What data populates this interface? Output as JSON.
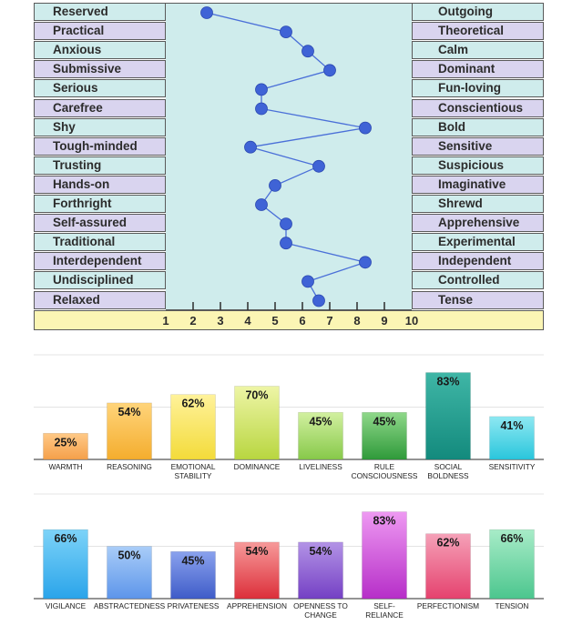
{
  "chart_data": [
    {
      "type": "line",
      "x_range": [
        1,
        10
      ],
      "x_ticks": [
        1,
        2,
        3,
        4,
        5,
        6,
        7,
        8,
        9,
        10
      ],
      "grid": false,
      "rows": [
        {
          "left": "Reserved",
          "right": "Outgoing",
          "value": 2.5
        },
        {
          "left": "Practical",
          "right": "Theoretical",
          "value": 5.4
        },
        {
          "left": "Anxious",
          "right": "Calm",
          "value": 6.2
        },
        {
          "left": "Submissive",
          "right": "Dominant",
          "value": 7.0
        },
        {
          "left": "Serious",
          "right": "Fun-loving",
          "value": 4.5
        },
        {
          "left": "Carefree",
          "right": "Conscientious",
          "value": 4.5
        },
        {
          "left": "Shy",
          "right": "Bold",
          "value": 8.3
        },
        {
          "left": "Tough-minded",
          "right": "Sensitive",
          "value": 4.1
        },
        {
          "left": "Trusting",
          "right": "Suspicious",
          "value": 6.6
        },
        {
          "left": "Hands-on",
          "right": "Imaginative",
          "value": 5.0
        },
        {
          "left": "Forthright",
          "right": "Shrewd",
          "value": 4.5
        },
        {
          "left": "Self-assured",
          "right": "Apprehensive",
          "value": 5.4
        },
        {
          "left": "Traditional",
          "right": "Experimental",
          "value": 5.4
        },
        {
          "left": "Interdependent",
          "right": "Independent",
          "value": 8.3
        },
        {
          "left": "Undisciplined",
          "right": "Controlled",
          "value": 6.2
        },
        {
          "left": "Relaxed",
          "right": "Tense",
          "value": 6.6
        }
      ]
    },
    {
      "type": "bar",
      "ylim": [
        0,
        100
      ],
      "grid": true,
      "categories": [
        "WARMTH",
        "REASONING",
        "EMOTIONAL STABILITY",
        "DOMINANCE",
        "LIVELINESS",
        "RULE CONSCIOUSNESS",
        "SOCIAL BOLDNESS",
        "SENSITIVITY"
      ],
      "values": [
        25,
        54,
        62,
        70,
        45,
        45,
        83,
        41
      ],
      "value_labels": [
        "25%",
        "54%",
        "62%",
        "70%",
        "45%",
        "45%",
        "83%",
        "41%"
      ],
      "colors": [
        [
          "#ffc987",
          "#f5a04a"
        ],
        [
          "#ffd47a",
          "#f4ad2e"
        ],
        [
          "#fff29a",
          "#f3db3a"
        ],
        [
          "#eef5a6",
          "#b8d640"
        ],
        [
          "#d2f0a0",
          "#87c94a"
        ],
        [
          "#8fd88a",
          "#2f9a3a"
        ],
        [
          "#3fb6a6",
          "#138a7d"
        ],
        [
          "#8ee8f2",
          "#2ac6dc"
        ]
      ]
    },
    {
      "type": "bar",
      "ylim": [
        0,
        100
      ],
      "grid": true,
      "categories": [
        "VIGILANCE",
        "ABSTRACTEDNESS",
        "PRIVATENESS",
        "APPREHENSION",
        "OPENNESS TO CHANGE",
        "SELF-RELIANCE",
        "PERFECTIONISM",
        "TENSION"
      ],
      "values": [
        66,
        50,
        45,
        54,
        54,
        83,
        62,
        66
      ],
      "value_labels": [
        "66%",
        "50%",
        "45%",
        "54%",
        "54%",
        "83%",
        "62%",
        "66%"
      ],
      "colors": [
        [
          "#7dd3f8",
          "#2aa4ea"
        ],
        [
          "#a9cdf8",
          "#5d95ea"
        ],
        [
          "#8aa2ee",
          "#3f5cc8"
        ],
        [
          "#f79a9a",
          "#dc2f3a"
        ],
        [
          "#b393e6",
          "#7440c4"
        ],
        [
          "#ee99f2",
          "#b62ec8"
        ],
        [
          "#f5a1b8",
          "#e5426e"
        ],
        [
          "#a8ecc8",
          "#4cc68e"
        ]
      ]
    }
  ]
}
